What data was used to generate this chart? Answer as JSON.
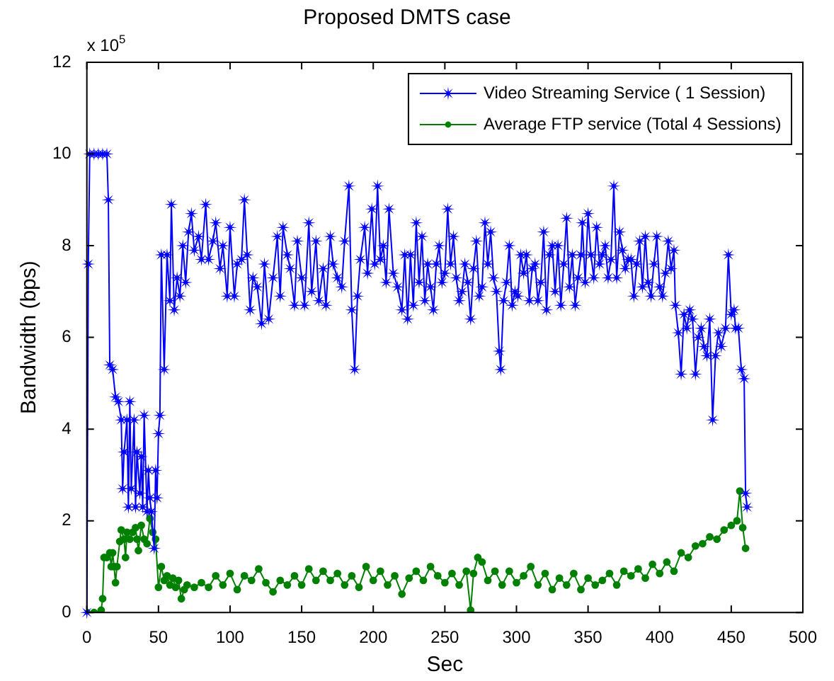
{
  "chart_data": {
    "type": "line",
    "title": "Proposed DMTS case",
    "xlabel": "Sec",
    "ylabel": "Bandwidth (bps)",
    "annotations": [
      "x 10$^{5}$"
    ],
    "xlim": [
      0,
      500
    ],
    "xticks": [
      0,
      50,
      100,
      150,
      200,
      250,
      300,
      350,
      400,
      450,
      500
    ],
    "ylim": [
      0,
      12
    ],
    "yticks": [
      0,
      2,
      4,
      6,
      8,
      10,
      12
    ],
    "legend": "top right",
    "grid": false,
    "line_style": "solid",
    "series": [
      {
        "name": "Video Streaming Service ( 1 Session)",
        "color": "#0000ff",
        "marker": "star",
        "x": [
          0,
          1,
          2,
          5,
          8,
          11,
          14,
          15,
          16,
          18,
          20,
          22,
          24,
          25,
          26,
          28,
          29,
          30,
          31,
          33,
          34,
          35,
          37,
          38,
          39,
          40,
          42,
          43,
          44,
          45,
          47,
          48,
          49,
          50,
          51,
          52,
          54,
          56,
          58,
          59,
          61,
          63,
          65,
          67,
          69,
          71,
          73,
          75,
          78,
          80,
          83,
          85,
          88,
          90,
          93,
          95,
          98,
          100,
          103,
          105,
          108,
          110,
          112,
          114,
          116,
          119,
          122,
          124,
          127,
          130,
          133,
          135,
          137,
          140,
          142,
          145,
          147,
          150,
          152,
          155,
          157,
          160,
          162,
          165,
          167,
          170,
          172,
          175,
          178,
          180,
          183,
          185,
          187,
          189,
          191,
          194,
          196,
          199,
          201,
          203,
          205,
          207,
          209,
          211,
          214,
          217,
          220,
          222,
          224,
          226,
          228,
          230,
          232,
          234,
          236,
          238,
          240,
          242,
          244,
          246,
          248,
          250,
          252,
          254,
          256,
          258,
          260,
          262,
          264,
          266,
          268,
          270,
          272,
          274,
          276,
          278,
          280,
          282,
          284,
          286,
          288,
          289,
          291,
          293,
          295,
          297,
          299,
          301,
          303,
          305,
          307,
          309,
          311,
          313,
          315,
          317,
          319,
          321,
          323,
          325,
          327,
          329,
          331,
          333,
          335,
          337,
          339,
          341,
          343,
          345,
          346,
          348,
          350,
          352,
          354,
          356,
          358,
          360,
          362,
          364,
          366,
          368,
          370,
          372,
          374,
          376,
          378,
          380,
          382,
          384,
          386,
          388,
          390,
          392,
          394,
          396,
          398,
          400,
          402,
          404,
          406,
          408,
          410,
          411,
          413,
          415,
          417,
          419,
          421,
          423,
          425,
          427,
          429,
          431,
          433,
          435,
          437,
          439,
          441,
          443,
          446,
          448,
          450,
          452,
          453,
          455,
          457,
          459,
          460,
          461
        ],
        "values": [
          0,
          7.6,
          10,
          10,
          10,
          10,
          10,
          9,
          5.4,
          5.3,
          4.7,
          4.6,
          4.2,
          2.7,
          3.5,
          4.2,
          2.3,
          4.6,
          2.7,
          4.2,
          2.3,
          3.5,
          2.6,
          3.4,
          2.3,
          4.3,
          2.2,
          3.1,
          2.5,
          2.2,
          1.4,
          3.1,
          2.5,
          3.9,
          4.3,
          7.8,
          5.3,
          7.8,
          6.8,
          8.9,
          6.6,
          7.3,
          6.9,
          8,
          7.2,
          8.3,
          8.7,
          7.9,
          8.2,
          7.7,
          8.9,
          7.7,
          8.1,
          8.5,
          7.5,
          8,
          6.9,
          8.4,
          6.9,
          7.6,
          7.7,
          9,
          7.8,
          6.6,
          7.3,
          7.1,
          6.3,
          7.6,
          6.4,
          7.3,
          8.2,
          6.9,
          8.4,
          7.8,
          7.5,
          6.7,
          8.1,
          7.3,
          6.7,
          8.5,
          7,
          8.1,
          6.8,
          7.5,
          6.7,
          8.2,
          7.6,
          7.3,
          7.1,
          8.1,
          9.3,
          6.6,
          5.3,
          6.9,
          7.7,
          8.4,
          7.4,
          8.8,
          7.6,
          9.3,
          7.7,
          8,
          7.2,
          8.8,
          7.4,
          7.1,
          6.6,
          7.8,
          6.4,
          7.8,
          6.7,
          8.5,
          7.2,
          8.2,
          6.8,
          7.6,
          7.1,
          6.6,
          7.6,
          8,
          7.2,
          7.4,
          8.8,
          7.6,
          8.2,
          7.3,
          6.8,
          7,
          7.6,
          7.2,
          6.4,
          7.5,
          8.1,
          6.9,
          7.1,
          8.5,
          7.6,
          8.3,
          7.3,
          7,
          5.7,
          5.3,
          6.8,
          7.2,
          8,
          6.7,
          7,
          6.9,
          7.8,
          7.4,
          7.8,
          6.8,
          7.5,
          7.6,
          6.8,
          7.2,
          8.3,
          6.6,
          7.8,
          8,
          7,
          8,
          6.7,
          7.6,
          8.6,
          7.1,
          7.8,
          6.7,
          7.3,
          7.8,
          8.5,
          7.2,
          8.7,
          7.8,
          7.3,
          8.4,
          7.6,
          7.8,
          8,
          7.3,
          7.7,
          9.3,
          7.3,
          8.3,
          7.9,
          7.5,
          7.7,
          7.7,
          6.9,
          7.6,
          8.1,
          7.1,
          8.2,
          7.2,
          6.9,
          7.6,
          8.2,
          7.1,
          6.9,
          7.4,
          8.1,
          7.5,
          7.9,
          6.7,
          6.1,
          5.2,
          6.5,
          6.2,
          6.6,
          6.4,
          5.2,
          6,
          6.2,
          5.8,
          5.6,
          6.4,
          4.2,
          5.6,
          6.1,
          5.8,
          6.2,
          7.8,
          6.5,
          6.6,
          6.2,
          6.2,
          5.3,
          5.1,
          2.6,
          2.3
        ]
      },
      {
        "name": "Average FTP service (Total 4 Sessions)",
        "color": "#008000",
        "marker": "circle",
        "x": [
          0,
          5,
          10,
          11,
          12,
          14,
          16,
          17,
          18,
          19,
          20,
          21,
          23,
          24,
          26,
          27,
          28,
          30,
          32,
          34,
          35,
          36,
          38,
          40,
          42,
          44,
          46,
          48,
          50,
          52,
          54,
          56,
          58,
          60,
          62,
          64,
          66,
          68,
          70,
          75,
          80,
          85,
          90,
          95,
          100,
          105,
          110,
          115,
          120,
          125,
          130,
          135,
          140,
          145,
          150,
          155,
          160,
          165,
          170,
          175,
          180,
          185,
          190,
          195,
          200,
          205,
          210,
          215,
          220,
          225,
          230,
          235,
          240,
          245,
          250,
          255,
          260,
          265,
          268,
          270,
          273,
          276,
          280,
          285,
          290,
          295,
          300,
          305,
          310,
          315,
          320,
          325,
          330,
          335,
          340,
          345,
          350,
          355,
          360,
          365,
          370,
          375,
          380,
          385,
          390,
          395,
          400,
          405,
          410,
          415,
          420,
          425,
          430,
          435,
          440,
          445,
          450,
          454,
          456,
          458,
          460
        ],
        "values": [
          0,
          0,
          0.05,
          0.3,
          1.2,
          1.2,
          1.3,
          1,
          1.3,
          1,
          0.65,
          1,
          1.55,
          1.8,
          1.6,
          1.2,
          1.75,
          1.6,
          1.75,
          1.85,
          1.6,
          1.35,
          1.9,
          1.6,
          1.5,
          2.05,
          1.75,
          1.6,
          0.55,
          1,
          0.7,
          0.8,
          0.6,
          0.75,
          0.55,
          0.7,
          0.3,
          0.5,
          0.6,
          0.55,
          0.65,
          0.55,
          0.8,
          0.6,
          0.85,
          0.5,
          0.8,
          0.7,
          0.95,
          0.65,
          0.45,
          0.7,
          0.6,
          0.8,
          0.6,
          0.95,
          0.7,
          0.9,
          0.7,
          0.85,
          0.6,
          0.8,
          0.55,
          1,
          0.7,
          0.9,
          0.6,
          0.8,
          0.4,
          0.75,
          0.9,
          0.7,
          1,
          0.8,
          0.65,
          0.85,
          0.6,
          0.9,
          0.05,
          0.85,
          1.2,
          1.1,
          0.7,
          0.9,
          0.6,
          0.9,
          0.65,
          0.8,
          1,
          0.6,
          0.85,
          0.5,
          0.75,
          0.6,
          0.85,
          0.5,
          0.75,
          0.6,
          0.7,
          0.85,
          0.6,
          0.9,
          0.8,
          0.95,
          0.75,
          1.05,
          0.85,
          1.1,
          0.9,
          1.3,
          1.2,
          1.45,
          1.5,
          1.65,
          1.6,
          1.8,
          1.9,
          2,
          2.65,
          1.85,
          1.4
        ]
      }
    ]
  }
}
